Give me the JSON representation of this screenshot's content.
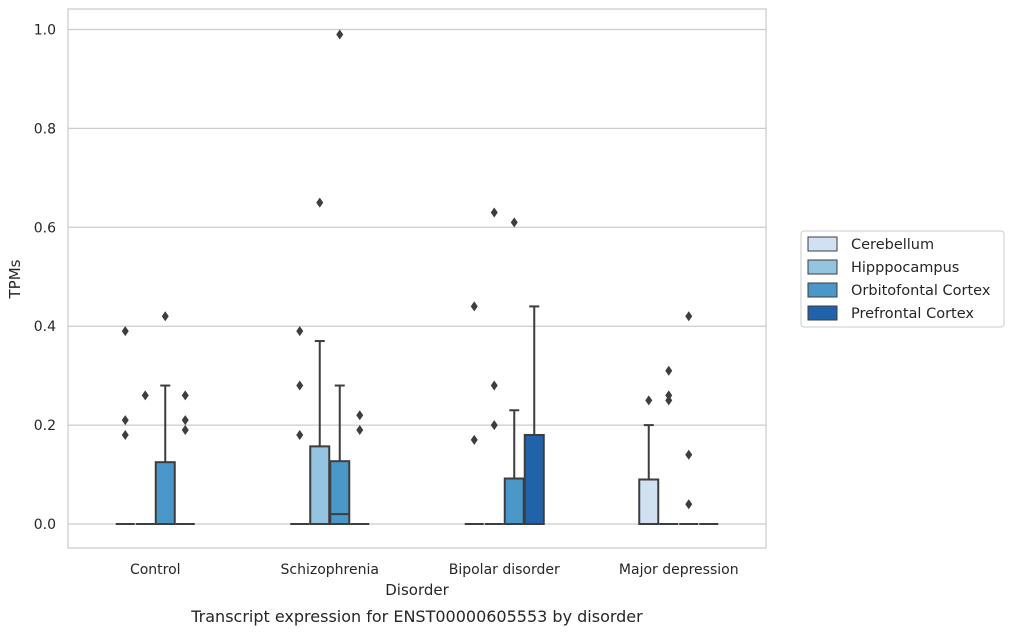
{
  "chart_data": {
    "type": "box",
    "title": "",
    "xlabel": "Disorder",
    "ylabel": "TPMs",
    "caption": "Transcript expression for ENST00000605553 by disorder",
    "ylim": [
      -0.048,
      1.04
    ],
    "yticks": [
      "0.0",
      "0.2",
      "0.4",
      "0.6",
      "0.8",
      "1.0"
    ],
    "ytick_values": [
      0.0,
      0.2,
      0.4,
      0.6,
      0.8,
      1.0
    ],
    "grid": true,
    "legend_position": "right",
    "categories": [
      "Control",
      "Schizophrenia",
      "Bipolar disorder",
      "Major depression"
    ],
    "series": [
      {
        "name": "Cerebellum",
        "color": "#d0e1f2",
        "boxes": [
          {
            "q1": 0,
            "median": 0,
            "q3": 0,
            "whisker_low": 0,
            "whisker_high": 0,
            "outliers": [
              0.18,
              0.21,
              0.39
            ]
          },
          {
            "q1": 0,
            "median": 0,
            "q3": 0,
            "whisker_low": 0,
            "whisker_high": 0,
            "outliers": [
              0.18,
              0.28,
              0.39
            ]
          },
          {
            "q1": 0,
            "median": 0,
            "q3": 0,
            "whisker_low": 0,
            "whisker_high": 0,
            "outliers": [
              0.17,
              0.44
            ]
          },
          {
            "q1": 0,
            "median": 0,
            "q3": 0.09,
            "whisker_low": 0,
            "whisker_high": 0.2,
            "outliers": [
              0.25
            ]
          }
        ]
      },
      {
        "name": "Hipppocampus",
        "color": "#94c4df",
        "boxes": [
          {
            "q1": 0,
            "median": 0,
            "q3": 0,
            "whisker_low": 0,
            "whisker_high": 0,
            "outliers": [
              0.26
            ]
          },
          {
            "q1": 0,
            "median": 0,
            "q3": 0.157,
            "whisker_low": 0,
            "whisker_high": 0.37,
            "outliers": [
              0.65
            ]
          },
          {
            "q1": 0,
            "median": 0,
            "q3": 0,
            "whisker_low": 0,
            "whisker_high": 0,
            "outliers": [
              0.2,
              0.28,
              0.63
            ]
          },
          {
            "q1": 0,
            "median": 0,
            "q3": 0,
            "whisker_low": 0,
            "whisker_high": 0,
            "outliers": [
              0.25,
              0.26,
              0.31
            ]
          }
        ]
      },
      {
        "name": "Orbitofontal Cortex",
        "color": "#4a98c9",
        "boxes": [
          {
            "q1": 0,
            "median": 0,
            "q3": 0.125,
            "whisker_low": 0,
            "whisker_high": 0.28,
            "outliers": [
              0.42
            ]
          },
          {
            "q1": 0,
            "median": 0.02,
            "q3": 0.127,
            "whisker_low": 0,
            "whisker_high": 0.28,
            "outliers": [
              0.99
            ]
          },
          {
            "q1": 0,
            "median": 0,
            "q3": 0.092,
            "whisker_low": 0,
            "whisker_high": 0.23,
            "outliers": [
              0.61
            ]
          },
          {
            "q1": 0,
            "median": 0,
            "q3": 0,
            "whisker_low": 0,
            "whisker_high": 0,
            "outliers": [
              0.04,
              0.14,
              0.42
            ]
          }
        ]
      },
      {
        "name": "Prefrontal Cortex",
        "color": "#2163aa",
        "boxes": [
          {
            "q1": 0,
            "median": 0,
            "q3": 0,
            "whisker_low": 0,
            "whisker_high": 0,
            "outliers": [
              0.19,
              0.21,
              0.26
            ]
          },
          {
            "q1": 0,
            "median": 0,
            "q3": 0,
            "whisker_low": 0,
            "whisker_high": 0,
            "outliers": [
              0.19,
              0.22
            ]
          },
          {
            "q1": 0,
            "median": 0,
            "q3": 0.18,
            "whisker_low": 0,
            "whisker_high": 0.44,
            "outliers": []
          },
          {
            "q1": 0,
            "median": 0,
            "q3": 0,
            "whisker_low": 0,
            "whisker_high": 0,
            "outliers": []
          }
        ]
      }
    ]
  }
}
